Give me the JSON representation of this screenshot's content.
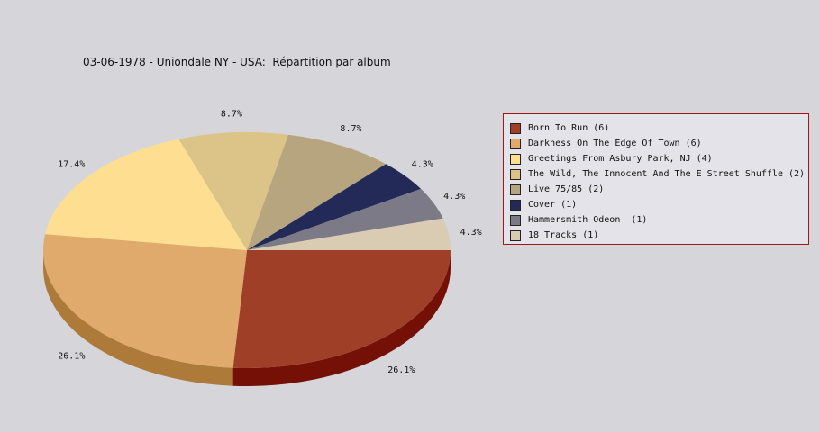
{
  "chart_data": {
    "type": "pie",
    "title": "03-06-1978 - Uniondale NY - USA:  Répartition par album",
    "slices": [
      {
        "label": "Born To Run (6)",
        "value": 6,
        "percent_label": "26.1%",
        "color": "#a03f28",
        "side_color": "#741005"
      },
      {
        "label": "Darkness On The Edge Of Town (6)",
        "value": 6,
        "percent_label": "26.1%",
        "color": "#e0aa6d",
        "side_color": "#ad7a3a"
      },
      {
        "label": "Greetings From Asbury Park, NJ (4)",
        "value": 4,
        "percent_label": "17.4%",
        "color": "#fedf91",
        "side_color": "#ad9b5f"
      },
      {
        "label": "The Wild, The Innocent And The E Street Shuffle (2)",
        "value": 2,
        "percent_label": "8.7%",
        "color": "#dcc488",
        "side_color": "#a08e5a"
      },
      {
        "label": "Live 75/85 (2)",
        "value": 2,
        "percent_label": "8.7%",
        "color": "#b7a57f",
        "side_color": "#857551"
      },
      {
        "label": "Cover (1)",
        "value": 1,
        "percent_label": "4.3%",
        "color": "#232a57",
        "side_color": "#10163a"
      },
      {
        "label": "Hammersmith Odeon  (1)",
        "value": 1,
        "percent_label": "4.3%",
        "color": "#7b7a86",
        "side_color": "#50505a"
      },
      {
        "label": "18 Tracks (1)",
        "value": 1,
        "percent_label": "4.3%",
        "color": "#d9ccb2",
        "side_color": "#a89a80"
      }
    ],
    "legend_position": "right"
  }
}
